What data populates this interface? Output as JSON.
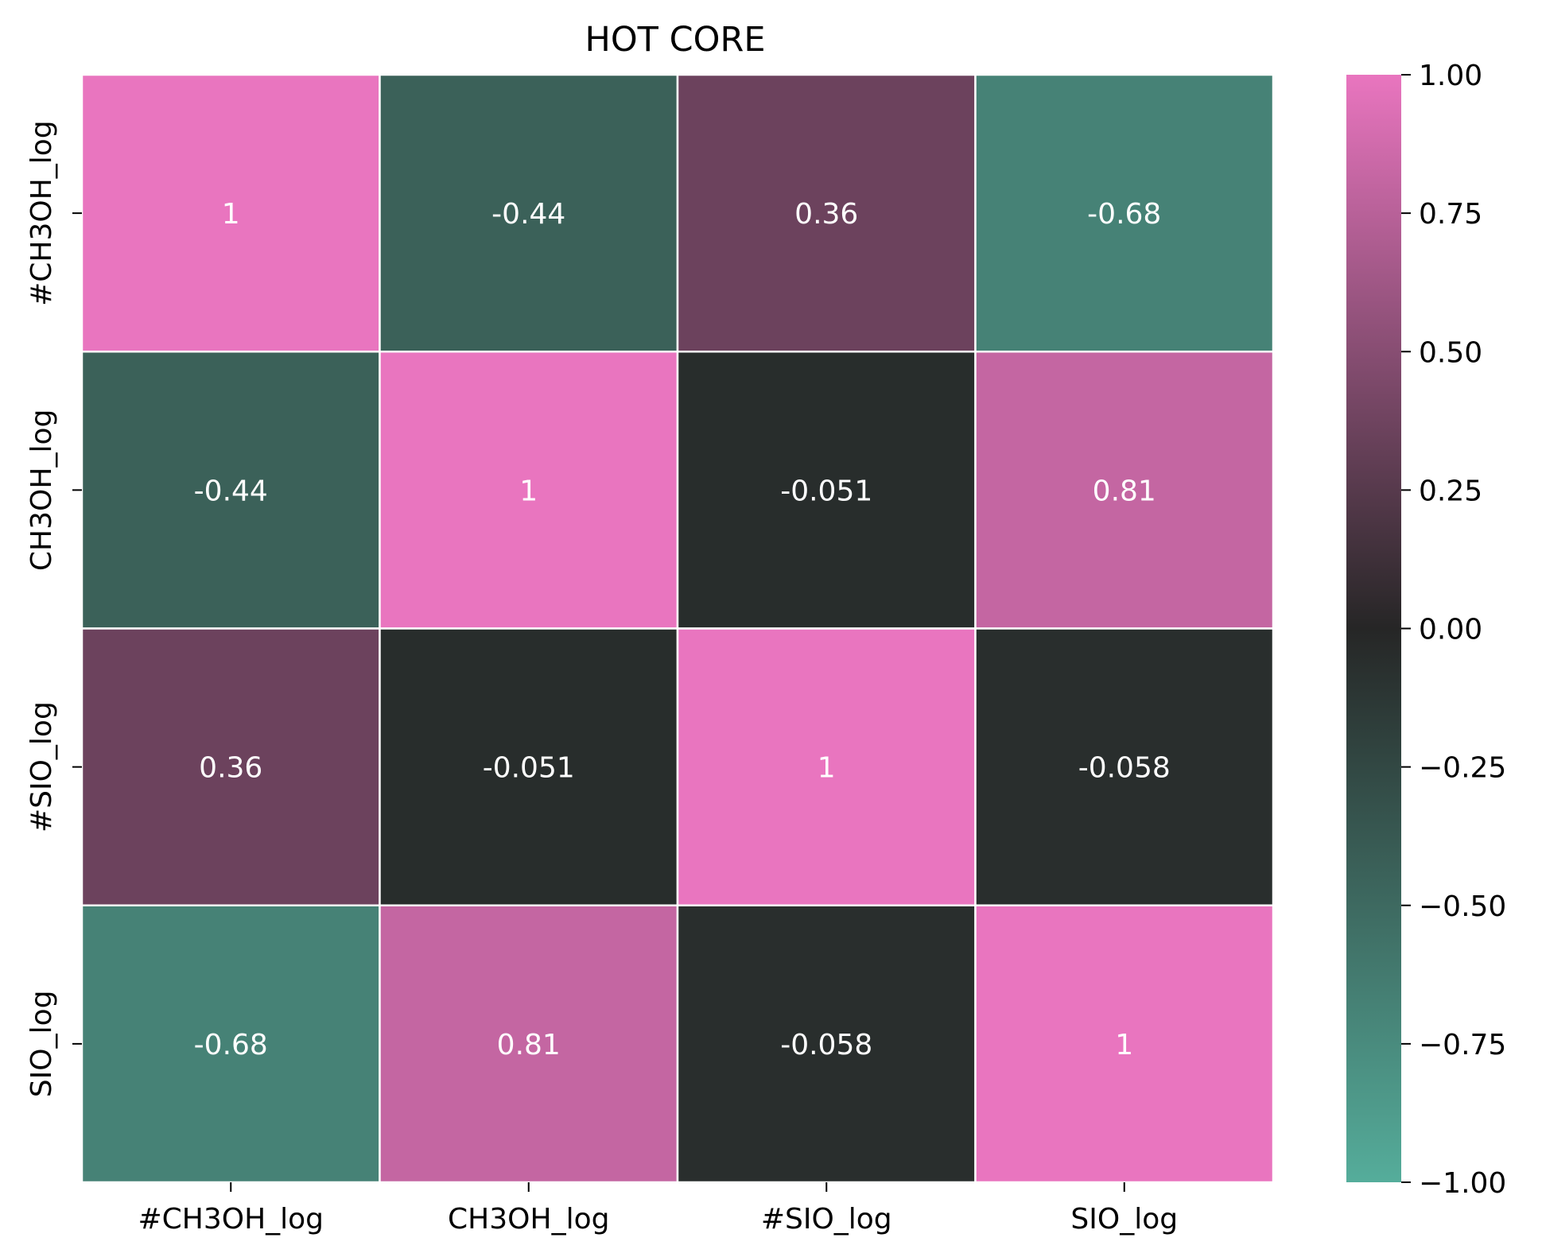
{
  "chart_data": {
    "type": "heatmap",
    "title": "HOT CORE",
    "rows": [
      "#CH3OH_log",
      "CH3OH_log",
      "#SIO_log",
      "SIO_log"
    ],
    "columns": [
      "#CH3OH_log",
      "CH3OH_log",
      "#SIO_log",
      "SIO_log"
    ],
    "values": [
      [
        1,
        -0.44,
        0.36,
        -0.68
      ],
      [
        -0.44,
        1,
        -0.051,
        0.81
      ],
      [
        0.36,
        -0.051,
        1,
        -0.058
      ],
      [
        -0.68,
        0.81,
        -0.058,
        1
      ]
    ],
    "annotations": [
      [
        "1",
        "-0.44",
        "0.36",
        "-0.68"
      ],
      [
        "-0.44",
        "1",
        "-0.051",
        "0.81"
      ],
      [
        "0.36",
        "-0.051",
        "1",
        "-0.058"
      ],
      [
        "-0.68",
        "0.81",
        "-0.058",
        "1"
      ]
    ],
    "colorbar": {
      "range": [
        -1,
        1
      ],
      "ticks": [
        1.0,
        0.75,
        0.5,
        0.25,
        0.0,
        -0.25,
        -0.5,
        -0.75,
        -1.0
      ],
      "tick_labels": [
        "1.00",
        "0.75",
        "0.50",
        "0.25",
        "0.00",
        "−0.25",
        "−0.50",
        "−0.75",
        "−1.00"
      ],
      "colors": {
        "min": "#55ad9b",
        "mid": "#262626",
        "max": "#e975bf"
      }
    },
    "cell_border_color": "#ffffff",
    "legend": "right"
  }
}
